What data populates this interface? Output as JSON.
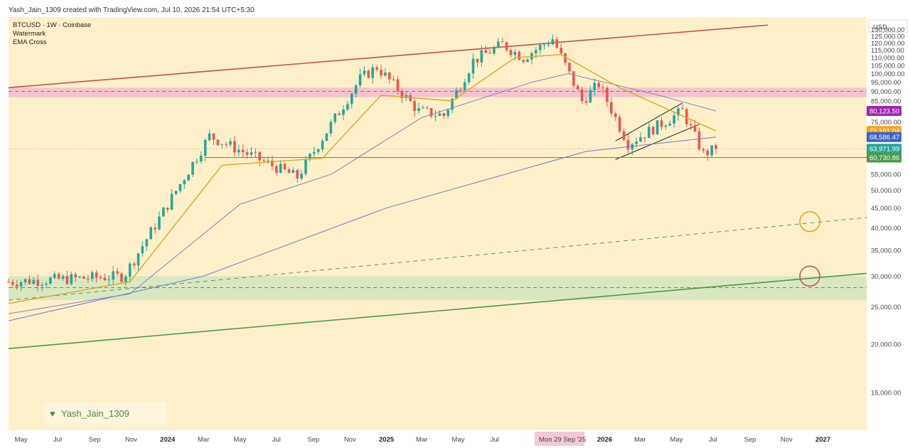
{
  "header": {
    "text": "Yash_Jain_1309 created with TradingView.com, Jul 10, 2026 21:54 UTC+5:30"
  },
  "legend": {
    "symbol": "BTCUSD · 1W · Coinbase",
    "item1": "Watermark",
    "item2": "EMA Cross"
  },
  "currency_button": "USD",
  "watermark_text": "Yash_Jain_1309",
  "crosshair_date": "Mon 29 Sep '25",
  "colors": {
    "background": "#fdf0c8",
    "up": "#26a69a",
    "down": "#ef5350",
    "ema_fast": "#e0a526",
    "ema_slow": "#8e7cc3",
    "resistance": "#c84e4e",
    "support": "#4a9a4a",
    "pink_zone": "#f0b3cf",
    "green_zone": "#cfe6be"
  },
  "chart_data": {
    "type": "candlestick",
    "title": "BTCUSD · 1W · Coinbase",
    "timeframe": "1W",
    "ylim": [
      12000,
      140000
    ],
    "x_range": [
      "2023-04-10",
      "2027-03-15"
    ],
    "y_ticks": [
      "130,000.00",
      "125,000.00",
      "120,000.00",
      "115,000.00",
      "110,000.00",
      "105,000.00",
      "100,000.00",
      "95,000.00",
      "90,000.00",
      "85,000.00",
      "80,000.00",
      "75,000.00",
      "70,000.00",
      "65,000.00",
      "60,000.00",
      "55,000.00",
      "50,000.00",
      "45,000.00",
      "40,000.00",
      "35,000.00",
      "30,000.00",
      "25,000.00",
      "20,000.00",
      "15,000.00"
    ],
    "x_ticks": [
      {
        "date": "2023-05-01",
        "label": "May",
        "bold": false
      },
      {
        "date": "2023-07-01",
        "label": "Jul",
        "bold": false
      },
      {
        "date": "2023-09-01",
        "label": "Sep",
        "bold": false
      },
      {
        "date": "2023-11-01",
        "label": "Nov",
        "bold": false
      },
      {
        "date": "2024-01-01",
        "label": "2024",
        "bold": true
      },
      {
        "date": "2024-03-01",
        "label": "Mar",
        "bold": false
      },
      {
        "date": "2024-05-01",
        "label": "May",
        "bold": false
      },
      {
        "date": "2024-07-01",
        "label": "Jul",
        "bold": false
      },
      {
        "date": "2024-09-01",
        "label": "Sep",
        "bold": false
      },
      {
        "date": "2024-11-01",
        "label": "Nov",
        "bold": false
      },
      {
        "date": "2025-01-01",
        "label": "2025",
        "bold": true
      },
      {
        "date": "2025-03-01",
        "label": "Mar",
        "bold": false
      },
      {
        "date": "2025-05-01",
        "label": "May",
        "bold": false
      },
      {
        "date": "2025-07-01",
        "label": "Jul",
        "bold": false
      },
      {
        "date": "2026-01-01",
        "label": "2026",
        "bold": true
      },
      {
        "date": "2026-03-01",
        "label": "Mar",
        "bold": false
      },
      {
        "date": "2026-05-01",
        "label": "May",
        "bold": false
      },
      {
        "date": "2026-07-01",
        "label": "Jul",
        "bold": false
      },
      {
        "date": "2026-09-01",
        "label": "Sep",
        "bold": false
      },
      {
        "date": "2026-11-01",
        "label": "Nov",
        "bold": false
      },
      {
        "date": "2027-01-01",
        "label": "2027",
        "bold": true
      }
    ],
    "price_labels": [
      {
        "value": 80123.5,
        "text": "80,123.50",
        "color": "#9c27b0"
      },
      {
        "value": 71151.04,
        "text": "71,151.04",
        "color": "#f5a623"
      },
      {
        "value": 68586.47,
        "text": "68,586.47",
        "color": "#3d63c9"
      },
      {
        "value": 63971.99,
        "text": "63,971.99",
        "color": "#26a69a"
      },
      {
        "value": 60730.86,
        "text": "60,730.86",
        "color": "#4a9a4a"
      }
    ],
    "key_points": [
      {
        "date": "2023-04-10",
        "close": 29000
      },
      {
        "date": "2023-10-20",
        "close": 30000
      },
      {
        "date": "2024-03-11",
        "close": 69000
      },
      {
        "date": "2024-08-05",
        "close": 54000
      },
      {
        "date": "2024-11-18",
        "close": 97000
      },
      {
        "date": "2024-12-16",
        "close": 104000
      },
      {
        "date": "2025-02-24",
        "close": 80000
      },
      {
        "date": "2025-04-07",
        "close": 78000
      },
      {
        "date": "2025-05-26",
        "close": 108000
      },
      {
        "date": "2025-07-14",
        "close": 119000
      },
      {
        "date": "2025-08-18",
        "close": 110000
      },
      {
        "date": "2025-10-06",
        "close": 123000
      },
      {
        "date": "2025-11-24",
        "close": 85000
      },
      {
        "date": "2025-12-22",
        "close": 94000
      },
      {
        "date": "2026-02-09",
        "close": 66000
      },
      {
        "date": "2026-05-11",
        "close": 80000
      },
      {
        "date": "2026-06-15",
        "close": 62000
      },
      {
        "date": "2026-07-06",
        "close": 63972
      }
    ],
    "ema_fast_points": [
      {
        "date": "2023-04-10",
        "value": 25500
      },
      {
        "date": "2023-10-30",
        "value": 29000
      },
      {
        "date": "2024-04-01",
        "value": 58000
      },
      {
        "date": "2024-09-16",
        "value": 60500
      },
      {
        "date": "2024-12-23",
        "value": 88000
      },
      {
        "date": "2025-04-21",
        "value": 85000
      },
      {
        "date": "2025-08-04",
        "value": 110000
      },
      {
        "date": "2025-10-20",
        "value": 112000
      },
      {
        "date": "2026-01-26",
        "value": 92000
      },
      {
        "date": "2026-07-06",
        "value": 71151.04
      }
    ],
    "ema_slow_points": [
      {
        "date": "2023-04-10",
        "value": 24000
      },
      {
        "date": "2023-10-30",
        "value": 27000
      },
      {
        "date": "2024-05-01",
        "value": 46000
      },
      {
        "date": "2024-10-01",
        "value": 55000
      },
      {
        "date": "2025-03-01",
        "value": 77000
      },
      {
        "date": "2025-09-01",
        "value": 95000
      },
      {
        "date": "2025-11-01",
        "value": 100000
      },
      {
        "date": "2026-04-01",
        "value": 88000
      },
      {
        "date": "2026-07-06",
        "value": 80123.5
      }
    ],
    "ma_long_points": [
      {
        "date": "2023-04-10",
        "value": 23000
      },
      {
        "date": "2024-03-01",
        "value": 30000
      },
      {
        "date": "2025-01-01",
        "value": 45000
      },
      {
        "date": "2025-12-01",
        "value": 63000
      },
      {
        "date": "2026-07-06",
        "value": 68586.47
      }
    ],
    "lines": {
      "resistance": [
        {
          "date": "2023-04-10",
          "price": 92000
        },
        {
          "date": "2026-10-01",
          "price": 133500
        }
      ],
      "support_long": [
        {
          "date": "2023-04-10",
          "price": 19500
        },
        {
          "date": "2027-03-15",
          "price": 30500
        }
      ],
      "trend_dashed": [
        {
          "date": "2023-04-10",
          "price": 26000
        },
        {
          "date": "2027-03-15",
          "price": 42500
        }
      ],
      "horizontal_support": {
        "price": 60730.86,
        "from": "2024-03-04"
      },
      "channel_upper": [
        {
          "date": "2026-01-19",
          "price": 67000
        },
        {
          "date": "2026-05-11",
          "price": 84000
        }
      ],
      "channel_lower": [
        {
          "date": "2026-01-19",
          "price": 60000
        },
        {
          "date": "2026-06-08",
          "price": 74000
        }
      ]
    },
    "zones": {
      "pink": {
        "from": 87000,
        "to": 92000,
        "mid": 90000
      },
      "green": {
        "from": 26000,
        "to": 30000,
        "mid": 28000
      }
    },
    "circles": [
      {
        "date": "2026-12-10",
        "price": 41500,
        "color": "#e0a526"
      },
      {
        "date": "2026-12-10",
        "price": 30000,
        "color": "#c84e4e"
      }
    ],
    "grid": false,
    "legend_position": "top-left"
  }
}
